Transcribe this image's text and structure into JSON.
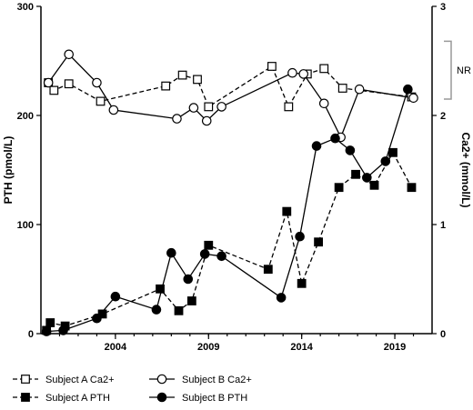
{
  "chart_data": {
    "type": "line",
    "xlim": [
      2000,
      2021
    ],
    "x_ticks": [
      2004,
      2009,
      2014,
      2019
    ],
    "y_left": {
      "label": "PTH (pmol/L)",
      "lim": [
        0,
        300
      ],
      "ticks": [
        0,
        100,
        200,
        300
      ]
    },
    "y_right": {
      "label": "Ca2+ (mmol/L)",
      "lim": [
        0,
        3
      ],
      "ticks": [
        0,
        1,
        2,
        3
      ]
    },
    "annotation": {
      "text": "NR",
      "range": [
        2.15,
        2.68
      ]
    },
    "series": [
      {
        "name": "Subject A Ca2+",
        "axis": "right",
        "line": "dashed",
        "marker": "square-open",
        "x": [
          2000.4,
          2000.7,
          2001.5,
          2003.2,
          2006.7,
          2007.6,
          2008.4,
          2009.0,
          2012.4,
          2013.3,
          2014.3,
          2015.2,
          2016.2,
          2019.9
        ],
        "y": [
          2.3,
          2.23,
          2.29,
          2.13,
          2.27,
          2.37,
          2.33,
          2.08,
          2.45,
          2.08,
          2.38,
          2.43,
          2.25,
          2.17
        ]
      },
      {
        "name": "Subject B Ca2+",
        "axis": "right",
        "line": "solid",
        "marker": "circle-open",
        "x": [
          2000.4,
          2001.5,
          2003.0,
          2003.9,
          2007.3,
          2008.2,
          2008.9,
          2009.7,
          2013.5,
          2014.1,
          2015.2,
          2016.1,
          2017.1,
          2020.0
        ],
        "y": [
          2.3,
          2.56,
          2.3,
          2.05,
          1.97,
          2.07,
          1.95,
          2.08,
          2.39,
          2.38,
          2.11,
          1.8,
          2.24,
          2.16
        ]
      },
      {
        "name": "Subject A PTH",
        "axis": "left",
        "line": "dashed",
        "marker": "square-filled",
        "x": [
          2000.3,
          2000.5,
          2001.3,
          2003.3,
          2006.4,
          2007.4,
          2008.1,
          2009.0,
          2012.2,
          2013.2,
          2014.0,
          2014.9,
          2016.0,
          2016.9,
          2017.9,
          2018.9,
          2019.9
        ],
        "y": [
          3,
          10,
          7,
          18,
          41,
          21,
          30,
          81,
          59,
          112,
          46,
          84,
          134,
          146,
          136,
          166,
          134
        ]
      },
      {
        "name": "Subject B PTH",
        "axis": "left",
        "line": "solid",
        "marker": "circle-filled",
        "x": [
          2000.3,
          2001.2,
          2003.0,
          2004.0,
          2006.2,
          2007.0,
          2007.9,
          2008.8,
          2009.7,
          2012.9,
          2013.9,
          2014.8,
          2015.8,
          2016.6,
          2017.5,
          2018.5,
          2019.7
        ],
        "y": [
          2,
          3,
          14,
          34,
          22,
          74,
          50,
          73,
          71,
          33,
          89,
          172,
          179,
          168,
          143,
          158,
          224
        ]
      }
    ],
    "legend": [
      "Subject A Ca2+",
      "Subject B Ca2+",
      "Subject A PTH",
      "Subject B PTH"
    ]
  }
}
